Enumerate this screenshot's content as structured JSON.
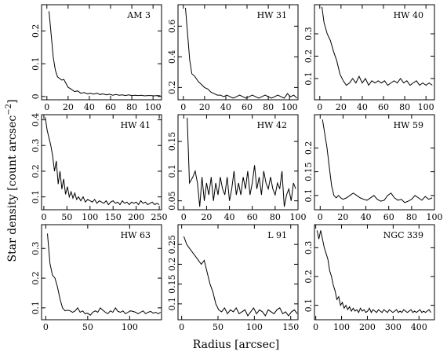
{
  "figure": {
    "ylabel": "Star density [count arcsec",
    "ylabel_sup": "−2",
    "ylabel_close": "]",
    "xlabel": "Radius [arcsec]"
  },
  "chart_data": [
    {
      "type": "line",
      "title": "AM 3",
      "xlim": [
        -5,
        108
      ],
      "ylim": [
        -0.01,
        0.28
      ],
      "xticks": [
        0,
        20,
        40,
        60,
        80,
        100
      ],
      "yticks": [
        0,
        0.1,
        0.2
      ],
      "xtick_labels": [
        "0",
        "20",
        "40",
        "60",
        "80",
        "100"
      ],
      "ytick_labels": [
        "0",
        "0.1",
        "0.2"
      ],
      "x": [
        2,
        4,
        6,
        8,
        10,
        12,
        14,
        16,
        18,
        20,
        23,
        26,
        29,
        32,
        35,
        38,
        41,
        44,
        47,
        50,
        53,
        56,
        59,
        62,
        65,
        68,
        71,
        74,
        77,
        80,
        83,
        86,
        89,
        92,
        95,
        98,
        101,
        104,
        107
      ],
      "y": [
        0.26,
        0.19,
        0.12,
        0.08,
        0.06,
        0.055,
        0.05,
        0.052,
        0.04,
        0.028,
        0.022,
        0.015,
        0.017,
        0.01,
        0.012,
        0.008,
        0.01,
        0.007,
        0.01,
        0.006,
        0.008,
        0.005,
        0.007,
        0.004,
        0.006,
        0.004,
        0.005,
        0.003,
        0.005,
        0.003,
        0.004,
        0.003,
        0.004,
        0.002,
        0.003,
        0.003,
        0.002,
        0.003,
        0.002
      ]
    },
    {
      "type": "line",
      "title": "HW 31",
      "xlim": [
        -5,
        108
      ],
      "ylim": [
        0.12,
        0.74
      ],
      "xticks": [
        0,
        20,
        40,
        60,
        80,
        100
      ],
      "yticks": [
        0.2,
        0.4,
        0.6
      ],
      "xtick_labels": [
        "0",
        "20",
        "40",
        "60",
        "80",
        "100"
      ],
      "ytick_labels": [
        "0.2",
        "0.4",
        "0.6"
      ],
      "x": [
        2,
        4,
        6,
        8,
        11,
        14,
        17,
        20,
        23,
        26,
        29,
        32,
        35,
        38,
        41,
        44,
        47,
        50,
        53,
        56,
        59,
        62,
        65,
        68,
        71,
        74,
        77,
        80,
        83,
        86,
        89,
        92,
        95,
        98,
        101,
        104,
        107
      ],
      "y": [
        0.72,
        0.55,
        0.38,
        0.29,
        0.27,
        0.24,
        0.22,
        0.2,
        0.19,
        0.17,
        0.16,
        0.15,
        0.15,
        0.14,
        0.15,
        0.14,
        0.13,
        0.14,
        0.15,
        0.14,
        0.13,
        0.14,
        0.15,
        0.14,
        0.13,
        0.14,
        0.15,
        0.14,
        0.13,
        0.14,
        0.15,
        0.14,
        0.13,
        0.16,
        0.14,
        0.15,
        0.13
      ]
    },
    {
      "type": "line",
      "title": "HW 40",
      "xlim": [
        -5,
        108
      ],
      "ylim": [
        0.005,
        0.43
      ],
      "xticks": [
        0,
        20,
        40,
        60,
        80,
        100
      ],
      "yticks": [
        0.1,
        0.2,
        0.3
      ],
      "xtick_labels": [
        "0",
        "20",
        "40",
        "60",
        "80",
        "100"
      ],
      "ytick_labels": [
        "0.1",
        "0.2",
        "0.3"
      ],
      "x": [
        2,
        4,
        7,
        10,
        13,
        16,
        19,
        22,
        25,
        28,
        31,
        34,
        37,
        40,
        43,
        46,
        49,
        52,
        55,
        58,
        61,
        64,
        67,
        70,
        73,
        76,
        79,
        82,
        85,
        88,
        91,
        94,
        97,
        100,
        103,
        106
      ],
      "y": [
        0.42,
        0.35,
        0.3,
        0.27,
        0.22,
        0.18,
        0.12,
        0.09,
        0.07,
        0.08,
        0.1,
        0.08,
        0.11,
        0.08,
        0.1,
        0.07,
        0.09,
        0.08,
        0.09,
        0.08,
        0.09,
        0.07,
        0.08,
        0.09,
        0.08,
        0.1,
        0.08,
        0.09,
        0.07,
        0.08,
        0.09,
        0.07,
        0.08,
        0.07,
        0.08,
        0.07
      ]
    },
    {
      "type": "line",
      "title": "HW 41",
      "xlim": [
        -5,
        255
      ],
      "ylim": [
        0.05,
        0.42
      ],
      "xticks": [
        0,
        50,
        100,
        150,
        200,
        250
      ],
      "yticks": [
        0.1,
        0.2,
        0.3,
        0.4
      ],
      "xtick_labels": [
        "0",
        "50",
        "100",
        "150",
        "200",
        "250"
      ],
      "ytick_labels": [
        "0.1",
        "0.2",
        "0.3",
        "0.4"
      ],
      "x": [
        3,
        7,
        11,
        15,
        19,
        23,
        27,
        31,
        35,
        39,
        43,
        47,
        51,
        55,
        59,
        63,
        67,
        71,
        75,
        80,
        85,
        90,
        95,
        100,
        105,
        110,
        115,
        120,
        125,
        130,
        135,
        140,
        145,
        150,
        155,
        160,
        165,
        170,
        175,
        180,
        185,
        190,
        195,
        200,
        205,
        210,
        215,
        220,
        225,
        230,
        235,
        240,
        245,
        250
      ],
      "y": [
        0.41,
        0.36,
        0.33,
        0.3,
        0.26,
        0.2,
        0.24,
        0.15,
        0.2,
        0.13,
        0.17,
        0.11,
        0.14,
        0.1,
        0.12,
        0.095,
        0.115,
        0.09,
        0.1,
        0.085,
        0.1,
        0.08,
        0.09,
        0.085,
        0.08,
        0.09,
        0.075,
        0.085,
        0.08,
        0.075,
        0.085,
        0.07,
        0.08,
        0.085,
        0.075,
        0.08,
        0.07,
        0.085,
        0.075,
        0.08,
        0.07,
        0.08,
        0.075,
        0.08,
        0.07,
        0.085,
        0.075,
        0.08,
        0.07,
        0.075,
        0.08,
        0.07,
        0.075,
        0.07
      ]
    },
    {
      "type": "line",
      "title": "HW 42",
      "xlim": [
        -5,
        100
      ],
      "ylim": [
        0.035,
        0.195
      ],
      "xticks": [
        0,
        20,
        40,
        60,
        80,
        100
      ],
      "yticks": [
        0.05,
        0.1,
        0.15
      ],
      "xtick_labels": [
        "0",
        "20",
        "40",
        "60",
        "80",
        "100"
      ],
      "ytick_labels": [
        "0.05",
        "0.1",
        "0.15"
      ],
      "x": [
        3,
        5,
        8,
        10,
        12,
        14,
        16,
        18,
        20,
        22,
        24,
        26,
        28,
        30,
        32,
        34,
        36,
        38,
        40,
        42,
        44,
        46,
        48,
        50,
        52,
        54,
        56,
        58,
        60,
        62,
        64,
        66,
        68,
        70,
        72,
        74,
        76,
        78,
        80,
        82,
        84,
        86,
        88,
        90,
        92,
        94,
        96,
        98
      ],
      "y": [
        0.19,
        0.08,
        0.09,
        0.1,
        0.08,
        0.04,
        0.09,
        0.05,
        0.08,
        0.06,
        0.09,
        0.05,
        0.08,
        0.06,
        0.09,
        0.07,
        0.06,
        0.09,
        0.05,
        0.07,
        0.1,
        0.06,
        0.08,
        0.06,
        0.09,
        0.07,
        0.1,
        0.06,
        0.08,
        0.11,
        0.07,
        0.09,
        0.06,
        0.1,
        0.08,
        0.07,
        0.09,
        0.07,
        0.06,
        0.08,
        0.07,
        0.1,
        0.04,
        0.06,
        0.07,
        0.05,
        0.08,
        0.07
      ]
    },
    {
      "type": "line",
      "title": "HW 59",
      "xlim": [
        -5,
        100
      ],
      "ylim": [
        0.07,
        0.27
      ],
      "xticks": [
        0,
        20,
        40,
        60,
        80,
        100
      ],
      "yticks": [
        0.1,
        0.15,
        0.2
      ],
      "xtick_labels": [
        "0",
        "20",
        "40",
        "60",
        "80",
        "100"
      ],
      "ytick_labels": [
        "0.1",
        "0.15",
        "0.2"
      ],
      "x": [
        2,
        4,
        6,
        8,
        10,
        12,
        14,
        16,
        18,
        20,
        23,
        26,
        29,
        32,
        35,
        38,
        41,
        44,
        47,
        50,
        53,
        56,
        59,
        62,
        65,
        68,
        71,
        74,
        77,
        80,
        83,
        86,
        89,
        92,
        95,
        98
      ],
      "y": [
        0.26,
        0.23,
        0.2,
        0.16,
        0.12,
        0.1,
        0.095,
        0.1,
        0.095,
        0.092,
        0.095,
        0.1,
        0.105,
        0.1,
        0.095,
        0.092,
        0.09,
        0.095,
        0.1,
        0.092,
        0.088,
        0.09,
        0.1,
        0.105,
        0.095,
        0.09,
        0.092,
        0.085,
        0.088,
        0.092,
        0.1,
        0.095,
        0.09,
        0.098,
        0.092,
        0.095
      ]
    },
    {
      "type": "line",
      "title": "HW 63",
      "xlim": [
        -5,
        138
      ],
      "ylim": [
        0.06,
        0.38
      ],
      "xticks": [
        0,
        50,
        100
      ],
      "yticks": [
        0.1,
        0.2,
        0.3
      ],
      "xtick_labels": [
        "0",
        "50",
        "100"
      ],
      "ytick_labels": [
        "0.1",
        "0.2",
        "0.3"
      ],
      "x": [
        2,
        5,
        8,
        11,
        14,
        17,
        20,
        23,
        26,
        29,
        32,
        35,
        38,
        41,
        44,
        47,
        50,
        53,
        56,
        59,
        62,
        65,
        68,
        71,
        74,
        77,
        80,
        83,
        86,
        89,
        92,
        95,
        98,
        101,
        104,
        107,
        110,
        113,
        116,
        119,
        122,
        125,
        128,
        131,
        134,
        137
      ],
      "y": [
        0.35,
        0.25,
        0.21,
        0.2,
        0.17,
        0.13,
        0.1,
        0.09,
        0.092,
        0.09,
        0.085,
        0.09,
        0.1,
        0.085,
        0.09,
        0.08,
        0.082,
        0.075,
        0.085,
        0.09,
        0.085,
        0.1,
        0.092,
        0.085,
        0.08,
        0.09,
        0.085,
        0.1,
        0.088,
        0.085,
        0.09,
        0.08,
        0.085,
        0.09,
        0.088,
        0.085,
        0.08,
        0.085,
        0.09,
        0.08,
        0.085,
        0.088,
        0.082,
        0.085,
        0.08,
        0.085
      ]
    },
    {
      "type": "line",
      "title": "L 91",
      "xlim": [
        -5,
        160
      ],
      "ylim": [
        0.06,
        0.3
      ],
      "xticks": [
        0,
        50,
        100,
        150
      ],
      "yticks": [
        0.1,
        0.15,
        0.2,
        0.25
      ],
      "xtick_labels": [
        "0",
        "50",
        "100",
        "150"
      ],
      "ytick_labels": [
        "0.1",
        "0.15",
        "0.2",
        "0.25"
      ],
      "x": [
        3,
        7,
        11,
        15,
        19,
        23,
        27,
        31,
        35,
        39,
        43,
        47,
        51,
        55,
        59,
        63,
        67,
        71,
        75,
        79,
        83,
        87,
        91,
        95,
        99,
        103,
        107,
        111,
        115,
        119,
        123,
        127,
        131,
        135,
        139,
        143,
        147,
        151,
        155,
        159
      ],
      "y": [
        0.27,
        0.25,
        0.24,
        0.23,
        0.22,
        0.21,
        0.2,
        0.21,
        0.18,
        0.15,
        0.13,
        0.1,
        0.085,
        0.08,
        0.09,
        0.075,
        0.085,
        0.08,
        0.09,
        0.075,
        0.08,
        0.085,
        0.07,
        0.08,
        0.09,
        0.075,
        0.085,
        0.08,
        0.07,
        0.085,
        0.08,
        0.075,
        0.085,
        0.09,
        0.075,
        0.08,
        0.07,
        0.08,
        0.085,
        0.075
      ]
    },
    {
      "type": "line",
      "title": "NGC 339",
      "xlim": [
        -5,
        460
      ],
      "ylim": [
        0.05,
        0.38
      ],
      "xticks": [
        0,
        100,
        200,
        300,
        400
      ],
      "yticks": [
        0.1,
        0.2,
        0.3
      ],
      "xtick_labels": [
        "0",
        "100",
        "200",
        "300",
        "400"
      ],
      "ytick_labels": [
        "0.1",
        "0.2",
        "0.3"
      ],
      "x": [
        5,
        12,
        19,
        26,
        33,
        40,
        47,
        54,
        61,
        68,
        75,
        82,
        89,
        96,
        103,
        110,
        117,
        124,
        131,
        138,
        145,
        152,
        159,
        166,
        173,
        180,
        187,
        194,
        201,
        208,
        215,
        222,
        229,
        236,
        243,
        250,
        257,
        264,
        271,
        278,
        285,
        292,
        299,
        306,
        313,
        320,
        327,
        334,
        341,
        348,
        355,
        362,
        369,
        376,
        383,
        390,
        397,
        404,
        411,
        418,
        425,
        432,
        439,
        446
      ],
      "y": [
        0.36,
        0.33,
        0.36,
        0.33,
        0.3,
        0.28,
        0.26,
        0.22,
        0.2,
        0.17,
        0.15,
        0.12,
        0.13,
        0.1,
        0.11,
        0.09,
        0.1,
        0.085,
        0.095,
        0.08,
        0.09,
        0.08,
        0.085,
        0.075,
        0.09,
        0.08,
        0.085,
        0.075,
        0.08,
        0.09,
        0.075,
        0.085,
        0.08,
        0.075,
        0.085,
        0.08,
        0.075,
        0.085,
        0.08,
        0.075,
        0.085,
        0.08,
        0.075,
        0.08,
        0.085,
        0.075,
        0.08,
        0.075,
        0.085,
        0.08,
        0.075,
        0.08,
        0.085,
        0.075,
        0.08,
        0.075,
        0.08,
        0.085,
        0.075,
        0.08,
        0.075,
        0.08,
        0.085,
        0.075
      ]
    }
  ]
}
